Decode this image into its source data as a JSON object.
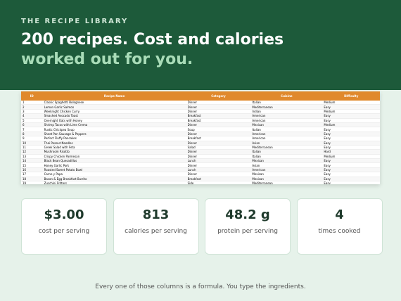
{
  "header": {
    "kicker": "THE RECIPE LIBRARY",
    "headline": "200 recipes. Cost and calories",
    "headline2": "worked out for you."
  },
  "table": {
    "columns": [
      "ID",
      "Recipe Name",
      "Category",
      "Cuisine",
      "Difficulty"
    ],
    "rows": [
      [
        "1",
        "Classic Spaghetti Bolognese",
        "Dinner",
        "Italian",
        "Medium"
      ],
      [
        "2",
        "Lemon Garlic Salmon",
        "Dinner",
        "Mediterranean",
        "Easy"
      ],
      [
        "3",
        "Weeknight Chicken Curry",
        "Dinner",
        "Indian",
        "Medium"
      ],
      [
        "4",
        "Smashed Avocado Toast",
        "Breakfast",
        "American",
        "Easy"
      ],
      [
        "5",
        "Overnight Oats with Honey",
        "Breakfast",
        "American",
        "Easy"
      ],
      [
        "6",
        "Shrimp Tacos with Lime Crema",
        "Dinner",
        "Mexican",
        "Medium"
      ],
      [
        "7",
        "Rustic Chickpea Soup",
        "Soup",
        "Italian",
        "Easy"
      ],
      [
        "8",
        "Sheet Pan Sausage & Peppers",
        "Dinner",
        "American",
        "Easy"
      ],
      [
        "9",
        "Perfect Fluffy Pancakes",
        "Breakfast",
        "American",
        "Easy"
      ],
      [
        "10",
        "Thai Peanut Noodles",
        "Dinner",
        "Asian",
        "Easy"
      ],
      [
        "11",
        "Greek Salad with Feta",
        "Salad",
        "Mediterranean",
        "Easy"
      ],
      [
        "12",
        "Mushroom Risotto",
        "Dinner",
        "Italian",
        "Hard"
      ],
      [
        "13",
        "Crispy Chicken Parmesan",
        "Dinner",
        "Italian",
        "Medium"
      ],
      [
        "14",
        "Black Bean Quesadillas",
        "Lunch",
        "Mexican",
        "Easy"
      ],
      [
        "15",
        "Honey Garlic Pork",
        "Dinner",
        "Asian",
        "Easy"
      ],
      [
        "16",
        "Roasted Sweet Potato Bowl",
        "Lunch",
        "American",
        "Easy"
      ],
      [
        "17",
        "Carne y Papa",
        "Dinner",
        "Mexican",
        "Easy"
      ],
      [
        "18",
        "Bacon & Egg Breakfast Burrito",
        "Breakfast",
        "Mexican",
        "Easy"
      ],
      [
        "19",
        "Zucchini Fritters",
        "Side",
        "Mediterranean",
        "Easy"
      ],
      [
        "20",
        "Classic Beef Burgers",
        "Dinner",
        "American",
        "Easy"
      ]
    ]
  },
  "stats": [
    {
      "value": "$3.00",
      "label": "cost per serving"
    },
    {
      "value": "813",
      "label": "calories per serving"
    },
    {
      "value": "48.2 g",
      "label": "protein per serving"
    },
    {
      "value": "4",
      "label": "times cooked"
    }
  ],
  "footer": "Every one of those columns is a formula. You type the ingredients."
}
